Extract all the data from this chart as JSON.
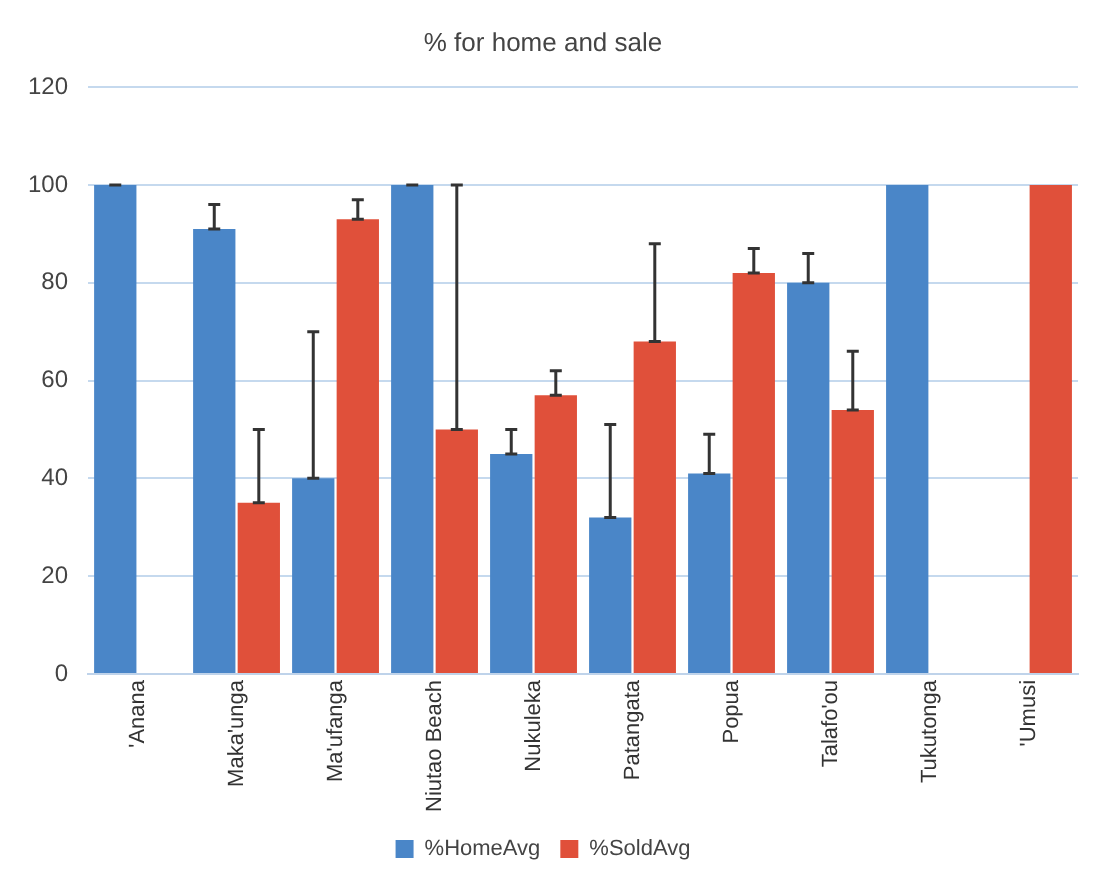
{
  "chart_data": {
    "type": "bar",
    "title": "% for home and sale",
    "categories": [
      "'Anana",
      "Maka'unga",
      "Ma'ufanga",
      "Niutao Beach",
      "Nukuleka",
      "Patangata",
      "Popua",
      "Talafo'ou",
      "Tukutonga",
      "'Umusi"
    ],
    "series": [
      {
        "name": "%HomeAvg",
        "color": "#4a86c8",
        "values": [
          100,
          91,
          40,
          100,
          45,
          32,
          41,
          80,
          100,
          null
        ],
        "errors": [
          [
            100,
            100
          ],
          [
            91,
            96
          ],
          [
            40,
            70
          ],
          [
            100,
            100
          ],
          [
            45,
            50
          ],
          [
            32,
            51
          ],
          [
            41,
            49
          ],
          [
            80,
            86
          ],
          null,
          null
        ]
      },
      {
        "name": "%SoldAvg",
        "color": "#e0503a",
        "values": [
          null,
          35,
          93,
          50,
          57,
          68,
          82,
          54,
          null,
          100
        ],
        "errors": [
          null,
          [
            35,
            50
          ],
          [
            93,
            97
          ],
          [
            50,
            100
          ],
          [
            57,
            62
          ],
          [
            68,
            88
          ],
          [
            82,
            87
          ],
          [
            54,
            66
          ],
          null,
          null
        ]
      }
    ],
    "ylim": [
      0,
      120
    ],
    "yticks": [
      0,
      20,
      40,
      60,
      80,
      100,
      120
    ],
    "grid": "y",
    "legend": "bottom"
  }
}
